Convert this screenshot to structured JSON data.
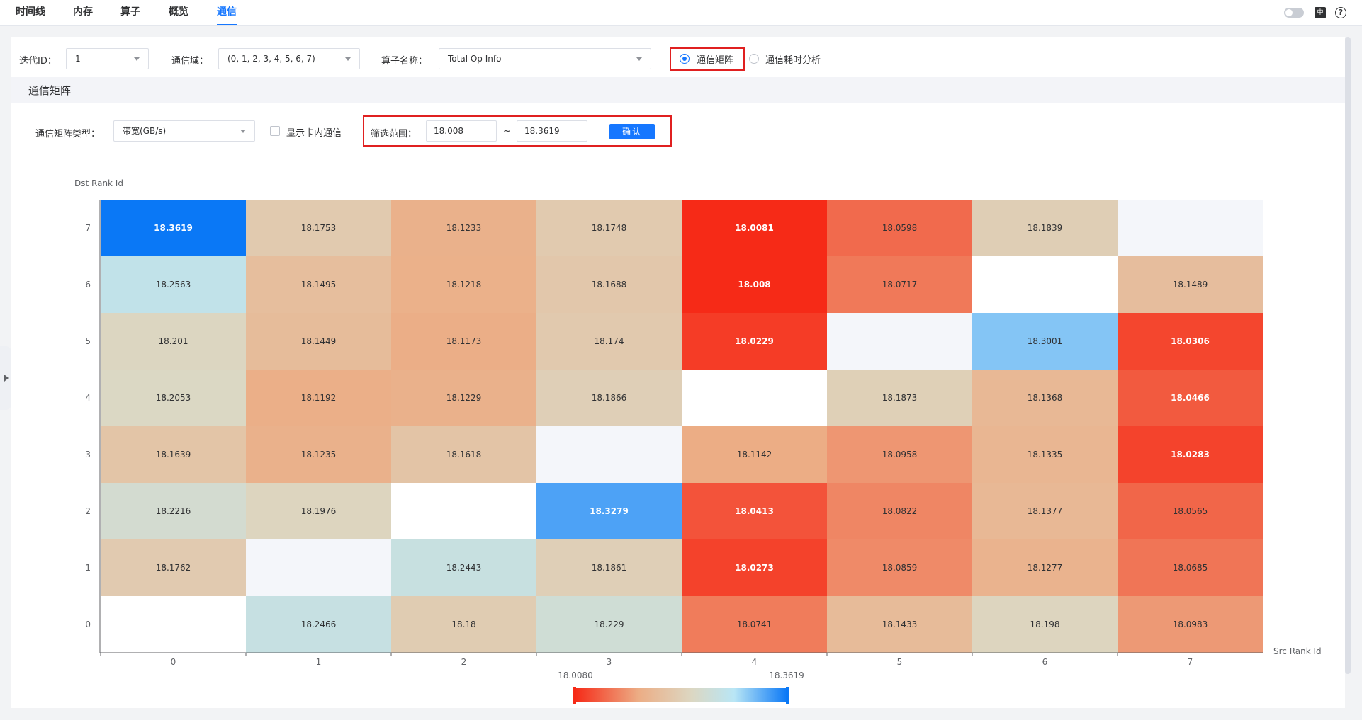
{
  "nav": {
    "tabs": [
      "时间线",
      "内存",
      "算子",
      "概览",
      "通信"
    ],
    "active_tab": "通信",
    "lang_icon": "中",
    "help_icon": "?"
  },
  "filters": {
    "iteration_label": "迭代ID：",
    "iteration_value": "1",
    "domain_label": "通信域：",
    "domain_value": "(0, 1, 2, 3, 4, 5, 6, 7)",
    "op_label": "算子名称：",
    "op_value": "Total Op Info",
    "radio_matrix": "通信矩阵",
    "radio_duration": "通信耗时分析",
    "selected_radio": "通信矩阵"
  },
  "section": {
    "title": "通信矩阵"
  },
  "matrix_controls": {
    "type_label": "通信矩阵类型：",
    "type_value": "带宽(GB/s)",
    "intra_card_label": "显示卡内通信",
    "range_label": "筛选范围：",
    "range_min": "18.008",
    "range_sep": "~",
    "range_max": "18.3619",
    "confirm_label": "确认"
  },
  "colors": {
    "accent": "#1677ff",
    "highlight_border": "#e02020",
    "scale_low": "#f62a17",
    "scale_mid": "#dcd7c2",
    "scale_high": "#0a78f6"
  },
  "chart_data": {
    "type": "heatmap",
    "xlabel": "Src Rank Id",
    "ylabel": "Dst Rank Id",
    "x": [
      "0",
      "1",
      "2",
      "3",
      "4",
      "5",
      "6",
      "7"
    ],
    "y": [
      "0",
      "1",
      "2",
      "3",
      "4",
      "5",
      "6",
      "7"
    ],
    "values": [
      [
        null,
        "18.2466",
        "18.18",
        "18.229",
        "18.0741",
        "18.1433",
        "18.198",
        "18.0983"
      ],
      [
        "18.1762",
        null,
        "18.2443",
        "18.1861",
        "18.0273",
        "18.0859",
        "18.1277",
        "18.0685"
      ],
      [
        "18.2216",
        "18.1976",
        null,
        "18.3279",
        "18.0413",
        "18.0822",
        "18.1377",
        "18.0565"
      ],
      [
        "18.1639",
        "18.1235",
        "18.1618",
        null,
        "18.1142",
        "18.0958",
        "18.1335",
        "18.0283"
      ],
      [
        "18.2053",
        "18.1192",
        "18.1229",
        "18.1866",
        null,
        "18.1873",
        "18.1368",
        "18.0466"
      ],
      [
        "18.201",
        "18.1449",
        "18.1173",
        "18.174",
        "18.0229",
        null,
        "18.3001",
        "18.0306"
      ],
      [
        "18.2563",
        "18.1495",
        "18.1218",
        "18.1688",
        "18.008",
        "18.0717",
        null,
        "18.1489"
      ],
      [
        "18.3619",
        "18.1753",
        "18.1233",
        "18.1748",
        "18.0081",
        "18.0598",
        "18.1839",
        null
      ]
    ],
    "empty_cell_colors": {
      "0": "#ffffff",
      "1": "#f4f6fa",
      "2": "#ffffff",
      "3": "#f4f6fa",
      "4": "#ffffff",
      "5": "#f4f6fa",
      "6": "#ffffff",
      "7": "#f4f6fa"
    },
    "colorbar": {
      "min_label": "18.0080",
      "max_label": "18.3619",
      "min": 18.008,
      "max": 18.3619
    }
  }
}
